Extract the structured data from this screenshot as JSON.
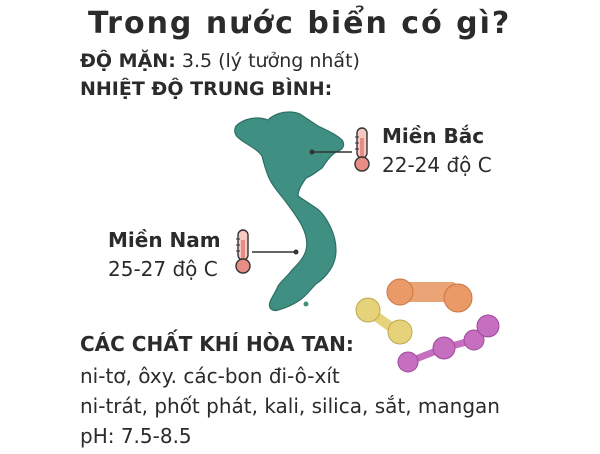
{
  "title": "Trong nước biển có gì?",
  "salinity": {
    "label": "ĐỘ MẶN:",
    "value": "3.5 (lý tưởng nhất)"
  },
  "avg_temp_heading": "NHIỆT ĐỘ TRUNG BÌNH:",
  "regions": {
    "north": {
      "name": "Miền Bắc",
      "temp": "22-24 độ C"
    },
    "south": {
      "name": "Miền Nam",
      "temp": "25-27 độ C"
    }
  },
  "dissolved_gases": {
    "heading": "CÁC CHẤT KHÍ HÒA TAN:",
    "line1": "ni-tơ, ôxy. các-bon đi-ô-xít",
    "line2": "ni-trát, phốt phát, kali, silica, sắt, mangan"
  },
  "ph": "pH: 7.5-8.5",
  "colors": {
    "map": "#3f8f82",
    "thermometer": "#e88d85",
    "molecule_orange": "#e99a66",
    "molecule_yellow": "#e6d27a",
    "molecule_pink": "#c66fc0"
  },
  "icons": [
    "vietnam-map-icon",
    "thermometer-icon",
    "molecule-icon"
  ]
}
